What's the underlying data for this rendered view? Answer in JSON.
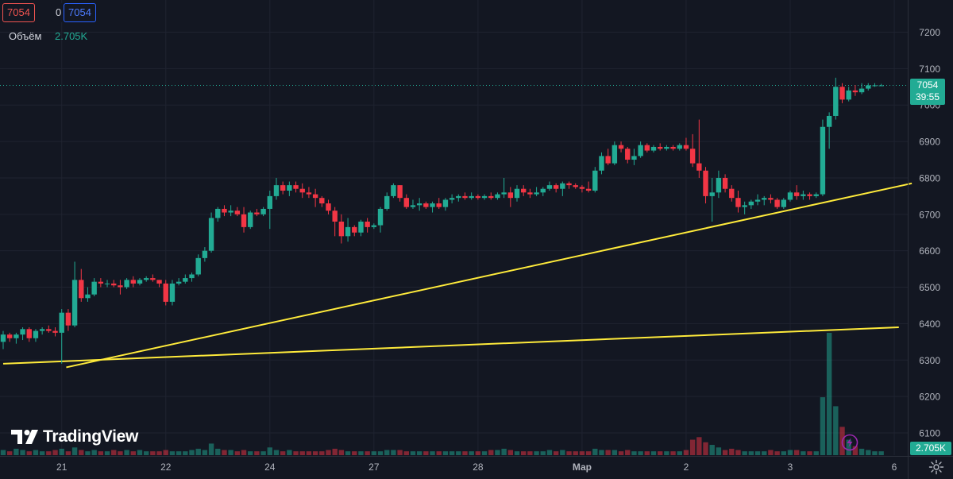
{
  "header": {
    "bid": "7054",
    "spread": "0",
    "ask": "7054",
    "volume_label": "Объём",
    "volume_value": "2.705K"
  },
  "branding": {
    "logo_text": "TradingView"
  },
  "price_axis": {
    "current_price": "7054",
    "countdown": "39:55",
    "volume_tag": "2.705K"
  },
  "colors": {
    "background": "#131722",
    "up": "#22ab94",
    "down": "#f23645",
    "trendline": "#ffeb3b",
    "grid": "#1f2330",
    "axis_text": "#b2b5be"
  },
  "icons": [
    "lightning-icon",
    "gear-icon"
  ],
  "chart_data": {
    "type": "candlestick",
    "y_ticks": [
      7200,
      7100,
      7000,
      6900,
      6800,
      6700,
      6600,
      6500,
      6400,
      6300,
      6200,
      6100
    ],
    "ylim": [
      6040,
      7270
    ],
    "x_ticks": [
      "21",
      "22",
      "24",
      "27",
      "28",
      "Мар",
      "2",
      "3",
      "6"
    ],
    "x_tick_index": [
      9,
      25,
      41,
      57,
      73,
      89,
      105,
      121,
      137
    ],
    "last_price": 7054,
    "candles": [
      [
        6350,
        6380,
        6330,
        6370
      ],
      [
        6370,
        6375,
        6350,
        6360
      ],
      [
        6360,
        6375,
        6345,
        6370
      ],
      [
        6370,
        6390,
        6355,
        6385
      ],
      [
        6385,
        6390,
        6350,
        6360
      ],
      [
        6360,
        6385,
        6350,
        6380
      ],
      [
        6380,
        6390,
        6370,
        6385
      ],
      [
        6385,
        6395,
        6375,
        6380
      ],
      [
        6380,
        6390,
        6365,
        6375
      ],
      [
        6375,
        6440,
        6290,
        6430
      ],
      [
        6430,
        6440,
        6380,
        6395
      ],
      [
        6395,
        6570,
        6390,
        6520
      ],
      [
        6520,
        6550,
        6460,
        6470
      ],
      [
        6470,
        6500,
        6460,
        6480
      ],
      [
        6480,
        6525,
        6475,
        6515
      ],
      [
        6515,
        6525,
        6500,
        6510
      ],
      [
        6510,
        6520,
        6500,
        6510
      ],
      [
        6510,
        6520,
        6500,
        6505
      ],
      [
        6505,
        6520,
        6480,
        6500
      ],
      [
        6500,
        6525,
        6495,
        6520
      ],
      [
        6520,
        6530,
        6500,
        6510
      ],
      [
        6510,
        6525,
        6505,
        6520
      ],
      [
        6520,
        6530,
        6515,
        6525
      ],
      [
        6525,
        6535,
        6515,
        6520
      ],
      [
        6520,
        6520,
        6500,
        6510
      ],
      [
        6510,
        6520,
        6450,
        6460
      ],
      [
        6460,
        6520,
        6450,
        6510
      ],
      [
        6510,
        6525,
        6505,
        6515
      ],
      [
        6515,
        6535,
        6510,
        6525
      ],
      [
        6525,
        6540,
        6515,
        6535
      ],
      [
        6535,
        6590,
        6530,
        6580
      ],
      [
        6580,
        6610,
        6570,
        6600
      ],
      [
        6600,
        6705,
        6595,
        6690
      ],
      [
        6690,
        6720,
        6680,
        6715
      ],
      [
        6715,
        6725,
        6695,
        6705
      ],
      [
        6705,
        6725,
        6695,
        6710
      ],
      [
        6710,
        6720,
        6695,
        6700
      ],
      [
        6700,
        6720,
        6650,
        6665
      ],
      [
        6665,
        6710,
        6660,
        6705
      ],
      [
        6705,
        6715,
        6695,
        6700
      ],
      [
        6700,
        6720,
        6695,
        6715
      ],
      [
        6715,
        6765,
        6660,
        6750
      ],
      [
        6750,
        6800,
        6740,
        6780
      ],
      [
        6780,
        6790,
        6755,
        6765
      ],
      [
        6765,
        6790,
        6750,
        6780
      ],
      [
        6780,
        6790,
        6760,
        6770
      ],
      [
        6770,
        6785,
        6745,
        6760
      ],
      [
        6760,
        6775,
        6745,
        6755
      ],
      [
        6755,
        6770,
        6720,
        6745
      ],
      [
        6745,
        6750,
        6720,
        6730
      ],
      [
        6730,
        6740,
        6700,
        6710
      ],
      [
        6710,
        6720,
        6640,
        6680
      ],
      [
        6680,
        6700,
        6620,
        6640
      ],
      [
        6640,
        6690,
        6625,
        6665
      ],
      [
        6665,
        6670,
        6640,
        6650
      ],
      [
        6650,
        6685,
        6640,
        6680
      ],
      [
        6680,
        6690,
        6650,
        6665
      ],
      [
        6665,
        6675,
        6660,
        6670
      ],
      [
        6670,
        6720,
        6650,
        6715
      ],
      [
        6715,
        6760,
        6710,
        6750
      ],
      [
        6750,
        6785,
        6745,
        6780
      ],
      [
        6780,
        6780,
        6735,
        6745
      ],
      [
        6745,
        6755,
        6715,
        6720
      ],
      [
        6720,
        6740,
        6715,
        6725
      ],
      [
        6725,
        6745,
        6710,
        6730
      ],
      [
        6730,
        6735,
        6715,
        6720
      ],
      [
        6720,
        6735,
        6705,
        6730
      ],
      [
        6730,
        6745,
        6715,
        6720
      ],
      [
        6720,
        6745,
        6710,
        6740
      ],
      [
        6740,
        6755,
        6730,
        6745
      ],
      [
        6745,
        6755,
        6735,
        6750
      ],
      [
        6750,
        6760,
        6740,
        6745
      ],
      [
        6745,
        6760,
        6740,
        6750
      ],
      [
        6750,
        6755,
        6740,
        6745
      ],
      [
        6745,
        6755,
        6740,
        6750
      ],
      [
        6750,
        6760,
        6740,
        6745
      ],
      [
        6745,
        6760,
        6740,
        6755
      ],
      [
        6755,
        6800,
        6745,
        6760
      ],
      [
        6760,
        6775,
        6720,
        6745
      ],
      [
        6745,
        6780,
        6735,
        6770
      ],
      [
        6770,
        6780,
        6750,
        6760
      ],
      [
        6760,
        6770,
        6745,
        6755
      ],
      [
        6755,
        6775,
        6750,
        6760
      ],
      [
        6760,
        6775,
        6750,
        6770
      ],
      [
        6770,
        6790,
        6765,
        6780
      ],
      [
        6780,
        6785,
        6760,
        6770
      ],
      [
        6770,
        6790,
        6750,
        6785
      ],
      [
        6785,
        6790,
        6770,
        6780
      ],
      [
        6780,
        6785,
        6770,
        6775
      ],
      [
        6775,
        6780,
        6760,
        6770
      ],
      [
        6770,
        6790,
        6760,
        6765
      ],
      [
        6765,
        6830,
        6760,
        6820
      ],
      [
        6820,
        6870,
        6810,
        6860
      ],
      [
        6860,
        6880,
        6835,
        6840
      ],
      [
        6840,
        6900,
        6835,
        6890
      ],
      [
        6890,
        6900,
        6870,
        6880
      ],
      [
        6880,
        6885,
        6840,
        6850
      ],
      [
        6850,
        6880,
        6835,
        6860
      ],
      [
        6860,
        6900,
        6855,
        6890
      ],
      [
        6890,
        6895,
        6870,
        6875
      ],
      [
        6875,
        6890,
        6870,
        6885
      ],
      [
        6885,
        6895,
        6875,
        6880
      ],
      [
        6880,
        6890,
        6875,
        6885
      ],
      [
        6885,
        6890,
        6875,
        6880
      ],
      [
        6880,
        6895,
        6875,
        6890
      ],
      [
        6890,
        6910,
        6875,
        6880
      ],
      [
        6880,
        6920,
        6830,
        6840
      ],
      [
        6840,
        6960,
        6800,
        6820
      ],
      [
        6820,
        6830,
        6730,
        6750
      ],
      [
        6750,
        6800,
        6680,
        6760
      ],
      [
        6760,
        6820,
        6745,
        6800
      ],
      [
        6800,
        6810,
        6760,
        6770
      ],
      [
        6770,
        6780,
        6735,
        6745
      ],
      [
        6745,
        6765,
        6705,
        6720
      ],
      [
        6720,
        6735,
        6700,
        6725
      ],
      [
        6725,
        6740,
        6715,
        6735
      ],
      [
        6735,
        6755,
        6725,
        6740
      ],
      [
        6740,
        6750,
        6725,
        6745
      ],
      [
        6745,
        6755,
        6730,
        6740
      ],
      [
        6740,
        6745,
        6715,
        6720
      ],
      [
        6720,
        6745,
        6715,
        6740
      ],
      [
        6740,
        6765,
        6735,
        6760
      ],
      [
        6760,
        6780,
        6740,
        6750
      ],
      [
        6750,
        6765,
        6740,
        6755
      ],
      [
        6755,
        6760,
        6740,
        6750
      ],
      [
        6750,
        6760,
        6745,
        6755
      ],
      [
        6755,
        6960,
        6750,
        6940
      ],
      [
        6940,
        6980,
        6880,
        6970
      ],
      [
        6970,
        7075,
        6960,
        7050
      ],
      [
        7050,
        7060,
        7005,
        7015
      ],
      [
        7015,
        7050,
        7010,
        7040
      ],
      [
        7040,
        7055,
        7025,
        7035
      ],
      [
        7035,
        7060,
        7030,
        7045
      ],
      [
        7045,
        7060,
        7040,
        7054
      ],
      [
        7054,
        7060,
        7050,
        7054
      ],
      [
        7054,
        7058,
        7052,
        7054
      ]
    ],
    "volume": [
      4,
      3,
      5,
      4,
      3,
      4,
      3,
      3,
      4,
      5,
      3,
      6,
      4,
      3,
      4,
      3,
      3,
      4,
      3,
      4,
      3,
      4,
      3,
      3,
      3,
      4,
      3,
      3,
      3,
      4,
      5,
      4,
      9,
      5,
      4,
      4,
      3,
      4,
      3,
      3,
      3,
      6,
      4,
      3,
      4,
      3,
      3,
      3,
      3,
      3,
      4,
      5,
      4,
      3,
      3,
      3,
      3,
      3,
      3,
      4,
      4,
      4,
      3,
      3,
      3,
      3,
      3,
      3,
      3,
      3,
      3,
      3,
      3,
      3,
      3,
      4,
      4,
      5,
      4,
      3,
      3,
      3,
      3,
      3,
      4,
      3,
      4,
      3,
      3,
      3,
      3,
      5,
      4,
      4,
      4,
      3,
      4,
      3,
      3,
      3,
      3,
      3,
      3,
      3,
      3,
      4,
      12,
      14,
      10,
      8,
      6,
      4,
      5,
      4,
      3,
      3,
      3,
      3,
      4,
      3,
      3,
      4,
      4,
      3,
      3,
      3,
      45,
      95,
      38,
      22,
      12,
      7,
      5,
      4,
      3,
      3
    ],
    "trendlines": [
      {
        "from": {
          "i": 9.7,
          "price": 6280
        },
        "to": {
          "i": 139.7,
          "price": 6785
        }
      },
      {
        "from": {
          "i": 0,
          "price": 6290
        },
        "to": {
          "i": 137.7,
          "price": 6390
        }
      }
    ]
  }
}
